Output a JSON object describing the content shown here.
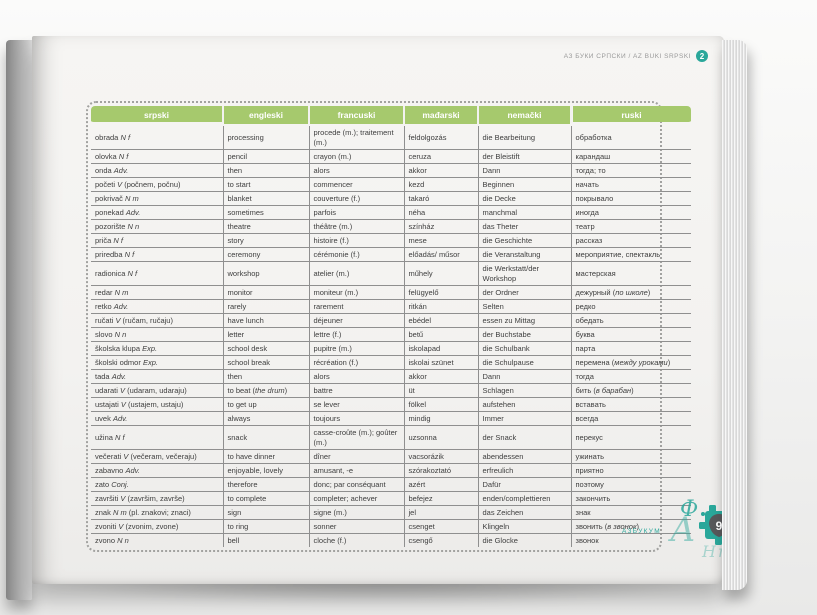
{
  "running_head": {
    "title": "АЗ БУКИ СРПСКИ / AZ BUKI SRPSKI",
    "level": "2"
  },
  "table": {
    "columns": [
      "srpski",
      "engleski",
      "francuski",
      "mađarski",
      "nemački",
      "ruski"
    ],
    "rows": [
      [
        "obrada *N f*",
        "processing",
        "procede (m.); traitement (m.)",
        "feldolgozás",
        "die Bearbeitung",
        "обработка"
      ],
      [
        "olovka *N f*",
        "pencil",
        "crayon (m.)",
        "ceruza",
        "der Bleistift",
        "карандаш"
      ],
      [
        "onda *Adv.*",
        "then",
        "alors",
        "akkor",
        "Dann",
        "тогда; то"
      ],
      [
        "početi *V* (počnem, počnu)",
        "to start",
        "commencer",
        "kezd",
        "Beginnen",
        "начать"
      ],
      [
        "pokrivač *N m*",
        "blanket",
        "couverture (f.)",
        "takaró",
        "die Decke",
        "покрывало"
      ],
      [
        "ponekad *Adv.*",
        "sometimes",
        "parfois",
        "néha",
        "manchmal",
        "иногда"
      ],
      [
        "pozorište *N n*",
        "theatre",
        "théâtre (m.)",
        "színház",
        "das Theter",
        "театр"
      ],
      [
        "priča *N f*",
        "story",
        "histoire (f.)",
        "mese",
        "die Geschichte",
        "рассказ"
      ],
      [
        "priredba *N f*",
        "ceremony",
        "cérémonie (f.)",
        "előadás/ műsor",
        "die Veranstaltung",
        "мероприятие, спектакль"
      ],
      [
        "radionica *N f*",
        "workshop",
        "atelier (m.)",
        "műhely",
        "die Werkstatt/der Workshop",
        "мастерская"
      ],
      [
        "redar *N m*",
        "monitor",
        "moniteur (m.)",
        "felügyelő",
        "der Ordner",
        "дежурный (*по школе*)"
      ],
      [
        "retko *Adv.*",
        "rarely",
        "rarement",
        "ritkán",
        "Selten",
        "редко"
      ],
      [
        "ručati *V* (ručam, ručaju)",
        "have lunch",
        "déjeuner",
        "ebédel",
        "essen zu Mittag",
        "обедать"
      ],
      [
        "slovo *N n*",
        "letter",
        "lettre (f.)",
        "betű",
        "der Buchstabe",
        "буква"
      ],
      [
        "školska klupa *Exp.*",
        "school desk",
        "pupitre (m.)",
        "iskolapad",
        "die Schulbank",
        "парта"
      ],
      [
        "školski odmor *Exp.*",
        "school break",
        "récréation (f.)",
        "iskolai szünet",
        "die Schulpause",
        "перемена (*между уроками*)"
      ],
      [
        "tada *Adv.*",
        "then",
        "alors",
        "akkor",
        "Dann",
        "тогда"
      ],
      [
        "udarati *V* (udaram, udaraju)",
        "to beat (*the drum*)",
        "battre",
        "üt",
        "Schlagen",
        "бить (*в барабан*)"
      ],
      [
        "ustajati *V* (ustajem, ustaju)",
        "to get up",
        "se lever",
        "fölkel",
        "aufstehen",
        "вставать"
      ],
      [
        "uvek *Adv.*",
        "always",
        "toujours",
        "mindig",
        "Immer",
        "всегда"
      ],
      [
        "užina *N f*",
        "snack",
        "casse-croûte (m.); goûter (m.)",
        "uzsonna",
        "der Snack",
        "перекус"
      ],
      [
        "večerati *V* (večeram, večeraju)",
        "to have dinner",
        "dîner",
        "vacsorázik",
        "abendessen",
        "ужинать"
      ],
      [
        "zabavno *Adv.*",
        "enjoyable, lovely",
        "amusant, -e",
        "szórakoztató",
        "erfreulich",
        "приятно"
      ],
      [
        "zato *Conj.*",
        "therefore",
        "donc; par conséquant",
        "azért",
        "Dafür",
        "поэтому"
      ],
      [
        "završiti *V* (završim, završe)",
        "to complete",
        "completer; achever",
        "befejez",
        "enden/complettieren",
        "закончить"
      ],
      [
        "znak *N m* (pl. znakovi; znaci)",
        "sign",
        "signe (m.)",
        "jel",
        "das Zeichen",
        "знак"
      ],
      [
        "zvoniti *V* (zvonim, zvone)",
        "to ring",
        "sonner",
        "csenget",
        "Klingeln",
        "звонить (*в звонок*)"
      ],
      [
        "zvono *N n*",
        "bell",
        "cloche  (f.)",
        "csengő",
        "die Glocke",
        "звонок"
      ]
    ]
  },
  "footer": {
    "brand": "Азбукум",
    "page_number": "9"
  },
  "colors": {
    "header_green": "#a6c96d",
    "accent_teal": "#2aa79a",
    "puzzle_gray": "#57585a",
    "paper": "#f3f2f0"
  }
}
